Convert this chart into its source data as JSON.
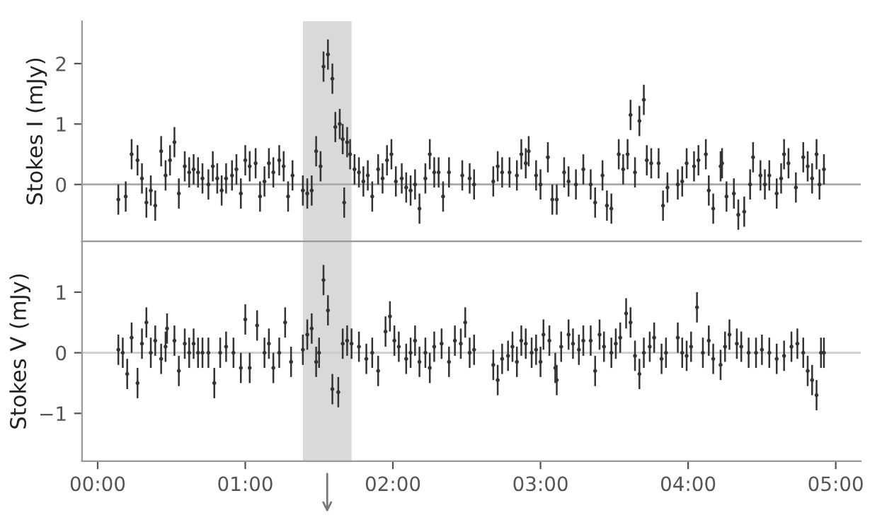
{
  "chart_data": [
    {
      "type": "scatter",
      "ylabel": "Stokes I (mJy)",
      "xlim": [
        -0.106,
        5.17
      ],
      "ylim": [
        -0.94,
        2.7
      ],
      "yticks": [
        0,
        1,
        2
      ],
      "marker": "circle",
      "tick_labels": "y",
      "ref_lines": [
        {
          "axis": "y",
          "value": 0,
          "color": "#aaaaaa"
        }
      ],
      "bands": [
        {
          "axis": "x",
          "from": 1.39,
          "to": 1.72,
          "color": "#d9d9d9"
        }
      ],
      "series": [
        {
          "color": "#333333",
          "x": [
            0.14,
            0.19,
            0.23,
            0.27,
            0.3,
            0.33,
            0.36,
            0.39,
            0.43,
            0.46,
            0.49,
            0.52,
            0.55,
            0.59,
            0.62,
            0.65,
            0.68,
            0.71,
            0.75,
            0.78,
            0.81,
            0.84,
            0.87,
            0.91,
            0.94,
            0.97,
            1.0,
            1.03,
            1.07,
            1.1,
            1.13,
            1.16,
            1.19,
            1.23,
            1.26,
            1.29,
            1.32,
            1.39,
            1.42,
            1.45,
            1.48,
            1.51,
            1.53,
            1.56,
            1.59,
            1.61,
            1.64,
            1.66,
            1.67,
            1.69,
            1.71,
            1.74,
            1.77,
            1.8,
            1.83,
            1.86,
            1.9,
            1.93,
            1.96,
            1.99,
            2.02,
            2.06,
            2.09,
            2.12,
            2.15,
            2.18,
            2.22,
            2.25,
            2.28,
            2.31,
            2.34,
            2.38,
            2.47,
            2.52,
            2.55,
            2.68,
            2.71,
            2.74,
            2.79,
            2.84,
            2.87,
            2.9,
            2.92,
            2.97,
            3.0,
            3.05,
            3.08,
            3.11,
            3.16,
            3.19,
            3.24,
            3.29,
            3.34,
            3.37,
            3.42,
            3.45,
            3.48,
            3.53,
            3.56,
            3.59,
            3.61,
            3.64,
            3.67,
            3.7,
            3.72,
            3.75,
            3.8,
            3.83,
            3.86,
            3.93,
            3.96,
            3.99,
            4.04,
            4.07,
            4.12,
            4.14,
            4.17,
            4.22,
            4.23,
            4.26,
            4.31,
            4.34,
            4.38,
            4.42,
            4.44,
            4.49,
            4.52,
            4.55,
            4.6,
            4.63,
            4.65,
            4.68,
            4.73,
            4.78,
            4.81,
            4.84,
            4.87,
            4.89,
            4.92
          ],
          "values": [
            -0.25,
            -0.2,
            0.5,
            0.4,
            0.1,
            -0.3,
            -0.1,
            -0.35,
            0.55,
            0.15,
            0.4,
            0.7,
            -0.15,
            0.3,
            0.2,
            0.25,
            0.2,
            0.1,
            0.0,
            0.3,
            0.1,
            -0.1,
            0.1,
            0.15,
            0.25,
            -0.15,
            0.4,
            0.3,
            0.35,
            -0.2,
            0.05,
            0.35,
            0.2,
            0.4,
            0.3,
            -0.2,
            0.15,
            -0.1,
            -0.15,
            -0.1,
            0.55,
            0.3,
            1.95,
            2.15,
            1.75,
            0.95,
            1.0,
            0.75,
            -0.3,
            0.7,
            0.5,
            0.25,
            0.2,
            0.05,
            0.15,
            -0.2,
            0.25,
            0.1,
            0.4,
            0.5,
            0.05,
            0.1,
            -0.05,
            -0.1,
            0.0,
            -0.4,
            0.1,
            0.5,
            0.2,
            0.2,
            -0.2,
            0.2,
            0.15,
            0.1,
            0.0,
            0.05,
            0.3,
            0.2,
            0.2,
            0.15,
            0.5,
            0.35,
            0.55,
            0.15,
            0.0,
            0.45,
            -0.25,
            -0.25,
            0.2,
            0.05,
            0.0,
            0.25,
            0.0,
            -0.3,
            0.15,
            -0.35,
            -0.4,
            0.5,
            0.25,
            0.5,
            1.15,
            0.2,
            1.05,
            1.4,
            0.4,
            0.35,
            0.35,
            -0.35,
            -0.05,
            0.0,
            0.05,
            0.35,
            0.3,
            0.4,
            0.5,
            -0.1,
            -0.4,
            0.3,
            0.35,
            -0.2,
            -0.15,
            -0.5,
            -0.45,
            0.0,
            0.45,
            0.15,
            0.0,
            0.15,
            -0.15,
            0.1,
            0.5,
            0.35,
            -0.05,
            0.45,
            0.3,
            0.1,
            0.5,
            0.0,
            0.25
          ],
          "errors": [
            0.25,
            0.25,
            0.25,
            0.25,
            0.25,
            0.25,
            0.25,
            0.25,
            0.25,
            0.25,
            0.25,
            0.25,
            0.25,
            0.25,
            0.25,
            0.25,
            0.25,
            0.25,
            0.25,
            0.25,
            0.25,
            0.25,
            0.25,
            0.25,
            0.25,
            0.25,
            0.25,
            0.25,
            0.25,
            0.25,
            0.25,
            0.25,
            0.25,
            0.25,
            0.25,
            0.25,
            0.25,
            0.25,
            0.25,
            0.25,
            0.25,
            0.25,
            0.25,
            0.25,
            0.25,
            0.25,
            0.25,
            0.25,
            0.25,
            0.25,
            0.25,
            0.25,
            0.25,
            0.25,
            0.25,
            0.25,
            0.25,
            0.25,
            0.25,
            0.25,
            0.25,
            0.25,
            0.25,
            0.25,
            0.25,
            0.25,
            0.25,
            0.25,
            0.25,
            0.25,
            0.25,
            0.25,
            0.25,
            0.25,
            0.25,
            0.25,
            0.25,
            0.25,
            0.25,
            0.25,
            0.25,
            0.25,
            0.25,
            0.25,
            0.25,
            0.25,
            0.25,
            0.25,
            0.25,
            0.25,
            0.25,
            0.25,
            0.25,
            0.25,
            0.25,
            0.25,
            0.25,
            0.25,
            0.25,
            0.25,
            0.25,
            0.25,
            0.25,
            0.25,
            0.25,
            0.25,
            0.25,
            0.25,
            0.25,
            0.25,
            0.25,
            0.25,
            0.25,
            0.25,
            0.25,
            0.25,
            0.25,
            0.25,
            0.25,
            0.25,
            0.25,
            0.25,
            0.25,
            0.25,
            0.25,
            0.25,
            0.25,
            0.25,
            0.25,
            0.25,
            0.25,
            0.25,
            0.25,
            0.25,
            0.25,
            0.25,
            0.25,
            0.25,
            0.25
          ]
        }
      ]
    },
    {
      "type": "scatter",
      "ylabel": "Stokes V (mJy)",
      "xlim": [
        -0.106,
        5.17
      ],
      "ylim": [
        -1.79,
        1.84
      ],
      "marker": "circle",
      "yticks": [
        {
          "value": -1,
          "label": "−1"
        },
        0,
        1
      ],
      "xticks": [
        {
          "value": 0,
          "label": "00:00"
        },
        {
          "value": 1,
          "label": "01:00"
        },
        {
          "value": 2,
          "label": "02:00"
        },
        {
          "value": 3,
          "label": "03:00"
        },
        {
          "value": 4,
          "label": "04:00"
        },
        {
          "value": 5,
          "label": "05:00"
        }
      ],
      "ref_lines": [
        {
          "axis": "y",
          "value": 0,
          "color": "#cccccc"
        }
      ],
      "bands": [
        {
          "axis": "x",
          "from": 1.39,
          "to": 1.72,
          "color": "#d9d9d9"
        }
      ],
      "series": [
        {
          "color": "#333333",
          "x": [
            0.14,
            0.17,
            0.2,
            0.23,
            0.27,
            0.3,
            0.33,
            0.36,
            0.39,
            0.43,
            0.46,
            0.47,
            0.52,
            0.55,
            0.59,
            0.62,
            0.65,
            0.68,
            0.71,
            0.75,
            0.79,
            0.83,
            0.87,
            0.92,
            0.97,
            1.0,
            1.03,
            1.08,
            1.13,
            1.16,
            1.19,
            1.23,
            1.27,
            1.31,
            1.39,
            1.42,
            1.45,
            1.48,
            1.5,
            1.53,
            1.56,
            1.59,
            1.63,
            1.66,
            1.69,
            1.72,
            1.77,
            1.82,
            1.86,
            1.9,
            1.95,
            1.98,
            2.01,
            2.04,
            2.09,
            2.12,
            2.15,
            2.18,
            2.22,
            2.25,
            2.28,
            2.33,
            2.38,
            2.42,
            2.46,
            2.49,
            2.52,
            2.55,
            2.68,
            2.71,
            2.74,
            2.78,
            2.81,
            2.84,
            2.87,
            2.9,
            2.94,
            2.97,
            3.0,
            3.02,
            3.06,
            3.1,
            3.11,
            3.14,
            3.19,
            3.22,
            3.26,
            3.29,
            3.34,
            3.37,
            3.4,
            3.43,
            3.48,
            3.51,
            3.54,
            3.58,
            3.61,
            3.64,
            3.67,
            3.7,
            3.74,
            3.77,
            3.82,
            3.85,
            3.93,
            3.96,
            3.99,
            4.02,
            4.06,
            4.1,
            4.14,
            4.17,
            4.22,
            4.25,
            4.28,
            4.33,
            4.36,
            4.41,
            4.46,
            4.5,
            4.55,
            4.6,
            4.65,
            4.7,
            4.74,
            4.78,
            4.81,
            4.84,
            4.87,
            4.9,
            4.92
          ],
          "values": [
            0.05,
            0.0,
            -0.35,
            0.25,
            -0.5,
            0.15,
            0.5,
            0.0,
            0.2,
            -0.1,
            0.1,
            0.4,
            0.2,
            -0.3,
            0.15,
            0.0,
            0.15,
            0.0,
            0.0,
            0.0,
            -0.5,
            0.0,
            0.1,
            0.0,
            -0.25,
            0.55,
            -0.25,
            0.45,
            0.0,
            0.15,
            -0.25,
            0.0,
            0.5,
            -0.15,
            0.05,
            0.3,
            0.4,
            -0.15,
            0.0,
            1.2,
            0.7,
            -0.6,
            -0.65,
            0.15,
            0.2,
            0.15,
            0.1,
            -0.1,
            0.0,
            -0.3,
            0.35,
            0.6,
            0.2,
            0.1,
            -0.1,
            0.0,
            0.2,
            -0.15,
            0.0,
            -0.25,
            0.1,
            0.15,
            -0.15,
            0.2,
            0.15,
            0.5,
            0.0,
            0.05,
            -0.2,
            -0.45,
            -0.1,
            -0.05,
            0.1,
            -0.15,
            0.2,
            0.15,
            0.0,
            0.05,
            -0.15,
            0.3,
            0.2,
            -0.25,
            -0.45,
            0.1,
            0.3,
            0.15,
            0.05,
            0.2,
            0.2,
            -0.3,
            0.3,
            0.1,
            0.0,
            0.15,
            0.25,
            0.65,
            0.5,
            -0.05,
            -0.35,
            0.0,
            0.1,
            0.25,
            -0.1,
            0.0,
            0.25,
            0.0,
            -0.05,
            0.1,
            0.75,
            0.0,
            0.2,
            -0.1,
            -0.2,
            0.1,
            0.3,
            0.15,
            0.1,
            0.0,
            0.0,
            0.05,
            0.0,
            -0.1,
            -0.05,
            0.1,
            0.15,
            0.0,
            -0.3,
            -0.45,
            -0.7,
            0.0,
            0.0
          ],
          "errors": [
            0.25,
            0.25,
            0.25,
            0.25,
            0.25,
            0.25,
            0.25,
            0.25,
            0.25,
            0.25,
            0.25,
            0.25,
            0.25,
            0.25,
            0.25,
            0.25,
            0.25,
            0.25,
            0.25,
            0.25,
            0.25,
            0.25,
            0.25,
            0.25,
            0.25,
            0.25,
            0.25,
            0.25,
            0.25,
            0.25,
            0.25,
            0.25,
            0.25,
            0.25,
            0.25,
            0.25,
            0.25,
            0.25,
            0.25,
            0.25,
            0.25,
            0.25,
            0.25,
            0.25,
            0.25,
            0.25,
            0.25,
            0.25,
            0.25,
            0.25,
            0.25,
            0.25,
            0.25,
            0.25,
            0.25,
            0.25,
            0.25,
            0.25,
            0.25,
            0.25,
            0.25,
            0.25,
            0.25,
            0.25,
            0.25,
            0.25,
            0.25,
            0.25,
            0.25,
            0.25,
            0.25,
            0.25,
            0.25,
            0.25,
            0.25,
            0.25,
            0.25,
            0.25,
            0.25,
            0.25,
            0.25,
            0.25,
            0.25,
            0.25,
            0.25,
            0.25,
            0.25,
            0.25,
            0.25,
            0.25,
            0.25,
            0.25,
            0.25,
            0.25,
            0.25,
            0.25,
            0.25,
            0.25,
            0.25,
            0.25,
            0.25,
            0.25,
            0.25,
            0.25,
            0.25,
            0.25,
            0.25,
            0.25,
            0.25,
            0.25,
            0.25,
            0.25,
            0.25,
            0.25,
            0.25,
            0.25,
            0.25,
            0.25,
            0.25,
            0.25,
            0.25,
            0.25,
            0.25,
            0.25,
            0.25,
            0.25,
            0.25,
            0.25,
            0.25,
            0.25,
            0.25
          ]
        }
      ]
    }
  ]
}
